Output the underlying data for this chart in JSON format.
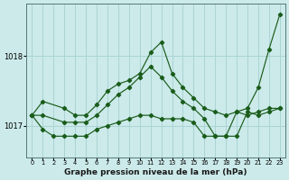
{
  "title": "Graphe pression niveau de la mer (hPa)",
  "bg_color": "#cceaea",
  "grid_color": "#aad4d4",
  "line_color": "#1a5c1a",
  "xlim": [
    -0.5,
    23.5
  ],
  "ylim": [
    1016.55,
    1018.75
  ],
  "yticks": [
    1017,
    1018
  ],
  "xticks": [
    0,
    1,
    2,
    3,
    4,
    5,
    6,
    7,
    8,
    9,
    10,
    11,
    12,
    13,
    14,
    15,
    16,
    17,
    18,
    19,
    20,
    21,
    22,
    23
  ],
  "series1_x": [
    0,
    1,
    3,
    4,
    5,
    6,
    7,
    8,
    9,
    10,
    11,
    12,
    13,
    14,
    15,
    16,
    17,
    18,
    19,
    20,
    21,
    22,
    23
  ],
  "series1_y": [
    1017.15,
    1017.35,
    1017.25,
    1017.15,
    1017.15,
    1017.3,
    1017.5,
    1017.6,
    1017.65,
    1017.75,
    1018.05,
    1018.2,
    1017.75,
    1017.55,
    1017.4,
    1017.25,
    1017.2,
    1017.15,
    1017.2,
    1017.25,
    1017.55,
    1018.1,
    1018.6
  ],
  "series2_x": [
    0,
    1,
    3,
    4,
    5,
    6,
    7,
    8,
    9,
    10,
    11,
    12,
    13,
    14,
    15,
    16,
    17,
    18,
    19,
    20,
    21,
    22,
    23
  ],
  "series2_y": [
    1017.15,
    1017.15,
    1017.05,
    1017.05,
    1017.05,
    1017.15,
    1017.3,
    1017.45,
    1017.55,
    1017.7,
    1017.85,
    1017.7,
    1017.5,
    1017.35,
    1017.25,
    1017.1,
    1016.85,
    1016.85,
    1016.85,
    1017.2,
    1017.15,
    1017.2,
    1017.25
  ],
  "series3_x": [
    0,
    1,
    2,
    3,
    4,
    5,
    6,
    7,
    8,
    9,
    10,
    11,
    12,
    13,
    14,
    15,
    16,
    17,
    18,
    19,
    20,
    21,
    22,
    23
  ],
  "series3_y": [
    1017.15,
    1016.95,
    1016.85,
    1016.85,
    1016.85,
    1016.85,
    1016.95,
    1017.0,
    1017.05,
    1017.1,
    1017.15,
    1017.15,
    1017.1,
    1017.1,
    1017.1,
    1017.05,
    1016.85,
    1016.85,
    1016.85,
    1017.2,
    1017.15,
    1017.2,
    1017.25,
    1017.25
  ]
}
